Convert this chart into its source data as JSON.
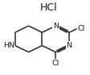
{
  "background_color": "#ffffff",
  "line_color": "#2a2a2a",
  "line_width": 1.1,
  "hcl_text": "HCl",
  "hn_text": "HN",
  "n1_text": "N",
  "n2_text": "N",
  "cl1_text": "Cl",
  "cl2_text": "Cl",
  "font_size": 6.8
}
